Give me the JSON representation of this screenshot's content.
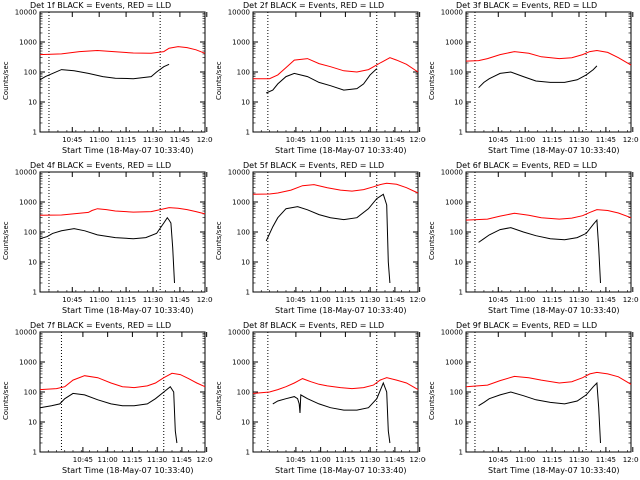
{
  "chart_data": [
    {
      "type": "line",
      "title": "Det 1f BLACK = Events, RED = LLD",
      "xlabel": "Start Time (18-May-07 10:33:40)",
      "ylabel": "Counts/sec",
      "x_ticks": [
        "10:45",
        "11:00",
        "11:15",
        "11:30",
        "11:45",
        "12:00"
      ],
      "y_ticks": [
        "10000",
        "1000",
        "100",
        "10",
        "1"
      ],
      "yscale": "log",
      "ylim": [
        1,
        10000
      ],
      "x_minutes": [
        -7,
        85
      ],
      "series": [
        {
          "name": "LLD",
          "color": "#ff0000",
          "x": [
            -7,
            5,
            15,
            25,
            35,
            45,
            55,
            62,
            65,
            70,
            75,
            80,
            85
          ],
          "y": [
            380,
            400,
            480,
            520,
            470,
            430,
            420,
            480,
            620,
            700,
            650,
            550,
            420
          ]
        },
        {
          "name": "Events",
          "color": "#000000",
          "x": [
            -7,
            -4,
            0,
            5,
            12,
            20,
            28,
            35,
            45,
            55,
            58,
            62,
            65
          ],
          "y": [
            55,
            70,
            90,
            120,
            110,
            90,
            70,
            62,
            60,
            70,
            100,
            150,
            180
          ]
        }
      ],
      "markers": [
        -2,
        60
      ]
    },
    {
      "type": "line",
      "title": "Det 2f BLACK = Events, RED = LLD",
      "xlabel": "Start Time (18-May-07 10:33:40)",
      "ylabel": "Counts/sec",
      "x_ticks": [
        "10:45",
        "11:00",
        "11:15",
        "11:30",
        "11:45",
        "12:00"
      ],
      "y_ticks": [
        "10000",
        "1000",
        "100",
        "10",
        "1"
      ],
      "yscale": "log",
      "ylim": [
        1,
        10000
      ],
      "x_minutes": [
        -15,
        85
      ],
      "series": [
        {
          "name": "LLD",
          "color": "#ff0000",
          "x": [
            -15,
            -5,
            0,
            5,
            10,
            18,
            25,
            32,
            40,
            48,
            55,
            62,
            68,
            72,
            78,
            85
          ],
          "y": [
            60,
            60,
            80,
            140,
            250,
            280,
            190,
            150,
            110,
            100,
            120,
            200,
            300,
            250,
            180,
            100
          ]
        },
        {
          "name": "Events",
          "color": "#000000",
          "x": [
            -7,
            -3,
            0,
            5,
            10,
            18,
            25,
            32,
            40,
            48,
            52,
            56,
            60
          ],
          "y": [
            20,
            25,
            40,
            70,
            90,
            70,
            45,
            35,
            25,
            28,
            40,
            80,
            130
          ]
        }
      ],
      "markers": [
        -6,
        60
      ]
    },
    {
      "type": "line",
      "title": "Det 3f BLACK = Events, RED = LLD",
      "xlabel": "Start Time (18-May-07 10:33:40)",
      "ylabel": "Counts/sec",
      "x_ticks": [
        "10:45",
        "11:00",
        "11:15",
        "11:30",
        "11:45",
        "12:00"
      ],
      "y_ticks": [
        "10000",
        "1000",
        "100",
        "10",
        "1"
      ],
      "yscale": "log",
      "ylim": [
        1,
        10000
      ],
      "x_minutes": [
        -7,
        85
      ],
      "series": [
        {
          "name": "LLD",
          "color": "#ff0000",
          "x": [
            -7,
            0,
            5,
            12,
            20,
            28,
            35,
            45,
            52,
            58,
            62,
            66,
            72,
            78,
            85
          ],
          "y": [
            230,
            240,
            280,
            380,
            480,
            420,
            320,
            280,
            300,
            380,
            480,
            520,
            450,
            300,
            170
          ]
        },
        {
          "name": "Events",
          "color": "#000000",
          "x": [
            0,
            3,
            6,
            12,
            18,
            25,
            32,
            40,
            48,
            55,
            60,
            64,
            66
          ],
          "y": [
            30,
            45,
            60,
            90,
            100,
            70,
            50,
            45,
            45,
            55,
            80,
            120,
            160
          ]
        }
      ],
      "markers": [
        -2,
        60
      ]
    },
    {
      "type": "line",
      "title": "Det 4f BLACK = Events, RED = LLD",
      "xlabel": "Start Time (18-May-07 10:33:40)",
      "ylabel": "Counts/sec",
      "x_ticks": [
        "10:45",
        "11:00",
        "11:15",
        "11:30",
        "11:45",
        "12:00"
      ],
      "y_ticks": [
        "10000",
        "1000",
        "100",
        "10",
        "1"
      ],
      "yscale": "log",
      "ylim": [
        1,
        10000
      ],
      "x_minutes": [
        -7,
        85
      ],
      "series": [
        {
          "name": "LLD",
          "color": "#ff0000",
          "x": [
            -7,
            5,
            15,
            20,
            22,
            25,
            30,
            35,
            45,
            55,
            60,
            65,
            70,
            75,
            80,
            85
          ],
          "y": [
            360,
            370,
            420,
            450,
            520,
            600,
            560,
            500,
            460,
            480,
            560,
            650,
            620,
            560,
            480,
            400
          ]
        },
        {
          "name": "Events",
          "color": "#000000",
          "x": [
            -7,
            -3,
            0,
            5,
            12,
            18,
            25,
            35,
            45,
            52,
            58,
            62,
            64,
            65,
            66,
            67,
            68
          ],
          "y": [
            60,
            70,
            90,
            110,
            130,
            110,
            80,
            65,
            60,
            65,
            90,
            200,
            300,
            250,
            200,
            30,
            2
          ]
        }
      ],
      "markers": [
        -2,
        60
      ]
    },
    {
      "type": "line",
      "title": "Det 5f BLACK = Events, RED = LLD",
      "xlabel": "Start Time (18-May-07 10:33:40)",
      "ylabel": "Counts/sec",
      "x_ticks": [
        "10:45",
        "11:00",
        "11:15",
        "11:30",
        "11:45",
        "12:00"
      ],
      "y_ticks": [
        "10000",
        "1000",
        "100",
        "10",
        "1"
      ],
      "yscale": "log",
      "ylim": [
        1,
        10000
      ],
      "x_minutes": [
        -15,
        85
      ],
      "series": [
        {
          "name": "LLD",
          "color": "#ff0000",
          "x": [
            -15,
            -5,
            0,
            8,
            15,
            22,
            30,
            38,
            45,
            52,
            58,
            62,
            66,
            72,
            78,
            85
          ],
          "y": [
            1800,
            1850,
            2000,
            2500,
            3500,
            3800,
            3000,
            2500,
            2300,
            2600,
            3200,
            3800,
            4200,
            3900,
            3000,
            2000
          ]
        },
        {
          "name": "Events",
          "color": "#000000",
          "x": [
            -7,
            -3,
            0,
            5,
            12,
            18,
            25,
            32,
            40,
            48,
            55,
            60,
            64,
            66,
            67,
            68
          ],
          "y": [
            50,
            150,
            300,
            600,
            700,
            550,
            380,
            300,
            260,
            300,
            600,
            1300,
            1800,
            800,
            10,
            2
          ]
        }
      ],
      "markers": [
        -6,
        60
      ]
    },
    {
      "type": "line",
      "title": "Det 6f BLACK = Events, RED = LLD",
      "xlabel": "Start Time (18-May-07 10:33:40)",
      "ylabel": "Counts/sec",
      "x_ticks": [
        "10:45",
        "11:00",
        "11:15",
        "11:30",
        "11:45",
        "12:00"
      ],
      "y_ticks": [
        "10000",
        "1000",
        "100",
        "10",
        "1"
      ],
      "yscale": "log",
      "ylim": [
        1,
        10000
      ],
      "x_minutes": [
        -7,
        85
      ],
      "series": [
        {
          "name": "LLD",
          "color": "#ff0000",
          "x": [
            -7,
            5,
            12,
            20,
            28,
            35,
            45,
            52,
            58,
            62,
            66,
            72,
            78,
            85
          ],
          "y": [
            250,
            270,
            340,
            420,
            360,
            300,
            270,
            290,
            350,
            450,
            560,
            520,
            430,
            300
          ]
        },
        {
          "name": "Events",
          "color": "#000000",
          "x": [
            0,
            3,
            6,
            12,
            18,
            25,
            32,
            40,
            48,
            55,
            60,
            64,
            66,
            67,
            68
          ],
          "y": [
            45,
            60,
            80,
            120,
            140,
            100,
            75,
            60,
            55,
            65,
            90,
            180,
            250,
            30,
            2
          ]
        }
      ],
      "markers": [
        -2,
        60
      ]
    },
    {
      "type": "line",
      "title": "Det 7f BLACK = Events, RED = LLD",
      "xlabel": "Start Time (18-May-07 10:33:40)",
      "ylabel": "Counts/sec",
      "x_ticks": [
        "10:45",
        "11:00",
        "11:15",
        "11:30",
        "11:45",
        "12:00"
      ],
      "y_ticks": [
        "10000",
        "1000",
        "100",
        "10",
        "1"
      ],
      "yscale": "log",
      "ylim": [
        1,
        10000
      ],
      "x_minutes": [
        -15,
        85
      ],
      "series": [
        {
          "name": "LLD",
          "color": "#ff0000",
          "x": [
            -15,
            -5,
            0,
            5,
            12,
            20,
            28,
            35,
            42,
            50,
            55,
            60,
            65,
            70,
            75,
            80,
            85
          ],
          "y": [
            120,
            130,
            150,
            250,
            350,
            300,
            200,
            150,
            140,
            160,
            200,
            300,
            420,
            380,
            280,
            200,
            150
          ]
        },
        {
          "name": "Events",
          "color": "#000000",
          "x": [
            -15,
            -8,
            -3,
            0,
            5,
            12,
            20,
            28,
            35,
            42,
            50,
            55,
            60,
            64,
            66,
            67,
            68
          ],
          "y": [
            30,
            35,
            40,
            60,
            90,
            80,
            55,
            40,
            35,
            35,
            40,
            60,
            100,
            150,
            100,
            5,
            2
          ]
        }
      ],
      "markers": [
        -2,
        60
      ]
    },
    {
      "type": "line",
      "title": "Det 8f BLACK = Events, RED = LLD",
      "xlabel": "Start Time (18-May-07 10:33:40)",
      "ylabel": "Counts/sec",
      "x_ticks": [
        "10:45",
        "11:00",
        "11:15",
        "11:30",
        "11:45",
        "12:00"
      ],
      "y_ticks": [
        "10000",
        "1000",
        "100",
        "10",
        "1"
      ],
      "yscale": "log",
      "ylim": [
        1,
        10000
      ],
      "x_minutes": [
        -15,
        85
      ],
      "series": [
        {
          "name": "LLD",
          "color": "#ff0000",
          "x": [
            -15,
            -5,
            0,
            5,
            10,
            15,
            20,
            25,
            30,
            38,
            45,
            52,
            58,
            62,
            66,
            72,
            78,
            85
          ],
          "y": [
            90,
            100,
            120,
            150,
            200,
            280,
            220,
            180,
            160,
            140,
            130,
            140,
            170,
            250,
            300,
            250,
            200,
            120
          ]
        },
        {
          "name": "Events",
          "color": "#000000",
          "x": [
            -3,
            0,
            5,
            10,
            12,
            13,
            13.5,
            14,
            18,
            25,
            32,
            40,
            48,
            55,
            60,
            64,
            66,
            67,
            68
          ],
          "y": [
            40,
            50,
            60,
            70,
            60,
            40,
            20,
            80,
            60,
            40,
            30,
            25,
            25,
            30,
            60,
            200,
            100,
            5,
            2
          ]
        }
      ],
      "markers": [
        -6,
        60
      ]
    },
    {
      "type": "line",
      "title": "Det 9f BLACK = Events, RED = LLD",
      "xlabel": "Start Time (18-May-07 10:33:40)",
      "ylabel": "Counts/sec",
      "x_ticks": [
        "10:45",
        "11:00",
        "11:15",
        "11:30",
        "11:45",
        "12:00"
      ],
      "y_ticks": [
        "10000",
        "1000",
        "100",
        "10",
        "1"
      ],
      "yscale": "log",
      "ylim": [
        1,
        10000
      ],
      "x_minutes": [
        -7,
        85
      ],
      "series": [
        {
          "name": "LLD",
          "color": "#ff0000",
          "x": [
            -7,
            5,
            12,
            20,
            28,
            35,
            45,
            52,
            58,
            62,
            66,
            72,
            78,
            85
          ],
          "y": [
            150,
            170,
            240,
            330,
            300,
            250,
            200,
            220,
            300,
            400,
            450,
            400,
            320,
            180
          ]
        },
        {
          "name": "Events",
          "color": "#000000",
          "x": [
            0,
            3,
            6,
            12,
            18,
            25,
            32,
            40,
            48,
            55,
            60,
            64,
            66,
            67,
            68
          ],
          "y": [
            35,
            45,
            60,
            80,
            100,
            75,
            55,
            45,
            40,
            50,
            80,
            150,
            200,
            30,
            2
          ]
        }
      ],
      "markers": [
        -2,
        60
      ]
    }
  ]
}
